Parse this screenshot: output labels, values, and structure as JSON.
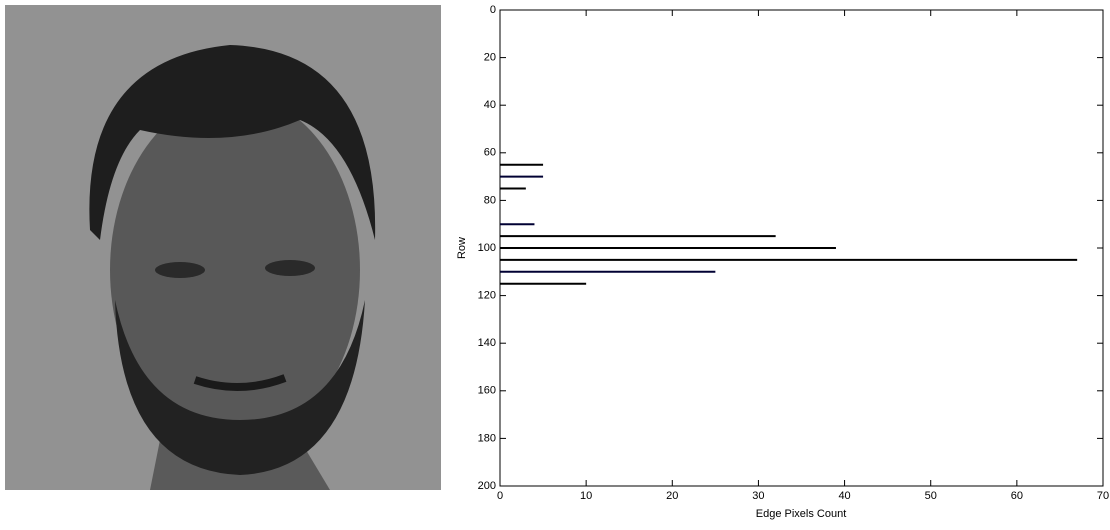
{
  "chart_data": {
    "type": "hbar",
    "xlabel": "Edge Pixels Count",
    "ylabel": "Row",
    "rows": [
      65,
      70,
      75,
      90,
      95,
      100,
      105,
      110,
      115
    ],
    "values": [
      5,
      5,
      3,
      4,
      32,
      39,
      67,
      25,
      10
    ],
    "colors": [
      "#000000",
      "#000033",
      "#000000",
      "#000033",
      "#000000",
      "#000000",
      "#000000",
      "#000033",
      "#000000"
    ],
    "xlim": [
      0,
      70
    ],
    "xticks": [
      0,
      10,
      20,
      30,
      40,
      50,
      60,
      70
    ],
    "ylim": [
      0,
      200
    ],
    "yticks": [
      0,
      20,
      40,
      60,
      80,
      100,
      120,
      140,
      160,
      180,
      200
    ],
    "y_reversed": true,
    "grid": false
  }
}
